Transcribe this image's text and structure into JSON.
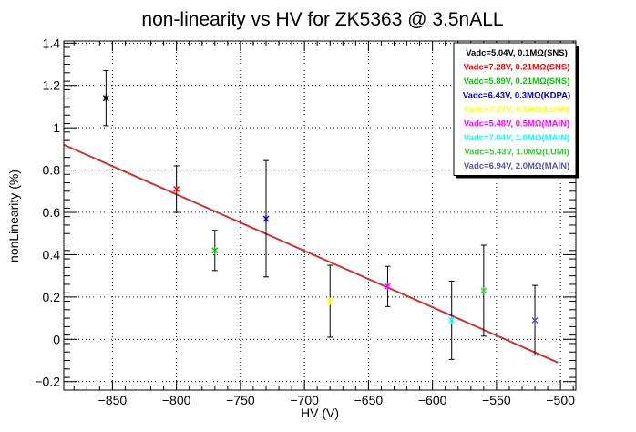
{
  "chart_data": {
    "type": "scatter",
    "title": "non-linearity vs HV for ZK5363 @ 3.5nALL",
    "xlabel": "HV (V)",
    "ylabel": "nonLinearity (%)",
    "xlim": [
      -888,
      -488
    ],
    "ylim": [
      -0.24,
      1.41
    ],
    "xticks": [
      -850,
      -800,
      -750,
      -700,
      -650,
      -600,
      -550,
      -500
    ],
    "xtick_labels": [
      "−850",
      "−800",
      "−750",
      "−700",
      "−650",
      "−600",
      "−550",
      "−500"
    ],
    "yticks": [
      -0.2,
      0,
      0.2,
      0.4,
      0.6,
      0.8,
      1,
      1.2,
      1.4
    ],
    "ytick_labels": [
      "−0.2",
      "0",
      "0.2",
      "0.4",
      "0.6",
      "0.8",
      "1",
      "1.2",
      "1.4"
    ],
    "grid": true,
    "legend_position": "top-right",
    "series": [
      {
        "name": "Vadc=5.04V, 0.1MΩ(SNS)",
        "color": "#000000",
        "x": -855,
        "y": 1.14,
        "err": 0.13
      },
      {
        "name": "Vadc=7.28V, 0.21MΩ(SNS)",
        "color": "#ff0000",
        "x": -800,
        "y": 0.71,
        "err": 0.11
      },
      {
        "name": "Vadc=5.89V, 0.21MΩ(SNS)",
        "color": "#00cc00",
        "x": -770,
        "y": 0.42,
        "err": 0.095
      },
      {
        "name": "Vadc=6.43V, 0.3MΩ(KDPA)",
        "color": "#0000cc",
        "x": -730,
        "y": 0.57,
        "err": 0.275
      },
      {
        "name": "Vadc=7.27V, 0.5MΩ(LUMI)",
        "color": "#ffff00",
        "x": -680,
        "y": 0.18,
        "err": 0.17
      },
      {
        "name": "Vadc=5.48V, 0.5MΩ(MAIN)",
        "color": "#ff00ff",
        "x": -635,
        "y": 0.25,
        "err": 0.095
      },
      {
        "name": "Vadc=7.04V, 1.0MΩ(MAIN)",
        "color": "#00ffff",
        "x": -585,
        "y": 0.09,
        "err": 0.185
      },
      {
        "name": "Vadc=5.43V, 1.0MΩ(LUMI)",
        "color": "#33cc33",
        "x": -560,
        "y": 0.23,
        "err": 0.215
      },
      {
        "name": "Vadc=6.94V, 2.0MΩ(MAIN)",
        "color": "#5555aa",
        "x": -520,
        "y": 0.09,
        "err": 0.165
      }
    ],
    "fit_line": {
      "color": "#cc3333",
      "x": [
        -888,
        -502
      ],
      "y": [
        0.92,
        -0.11
      ]
    }
  }
}
